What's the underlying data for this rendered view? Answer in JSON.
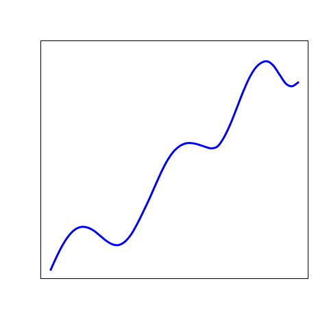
{
  "chart_data": {
    "type": "line",
    "title": "",
    "xlabel": "",
    "ylabel": "",
    "axes_visible": false,
    "box_frame": true,
    "grid": false,
    "legend": "none",
    "xlim": [
      -0.4,
      10.4
    ],
    "ylim": [
      -0.4,
      10.4
    ],
    "series": [
      {
        "color": "#0000ff",
        "x": [
          0.0,
          0.25,
          0.5,
          0.75,
          1.0,
          1.25,
          1.5,
          1.75,
          2.0,
          2.25,
          2.5,
          2.75,
          3.0,
          3.25,
          3.5,
          3.75,
          4.0,
          4.25,
          4.5,
          4.75,
          5.0,
          5.25,
          5.5,
          5.75,
          6.0,
          6.25,
          6.5,
          6.75,
          7.0,
          7.25,
          7.5,
          7.75,
          8.0,
          8.25,
          8.5,
          8.75,
          9.0,
          9.25,
          9.5,
          9.75,
          10.0
        ],
        "y": [
          0.0,
          0.618,
          1.159,
          1.575,
          1.841,
          1.949,
          1.912,
          1.772,
          1.543,
          1.314,
          1.154,
          1.128,
          1.279,
          1.605,
          2.095,
          2.661,
          3.257,
          3.894,
          4.511,
          5.032,
          5.415,
          5.646,
          5.752,
          5.745,
          5.676,
          5.583,
          5.516,
          5.612,
          6.011,
          6.591,
          7.294,
          8.015,
          8.657,
          9.132,
          9.396,
          9.466,
          9.27,
          8.858,
          8.459,
          8.335,
          8.51
        ]
      }
    ]
  }
}
